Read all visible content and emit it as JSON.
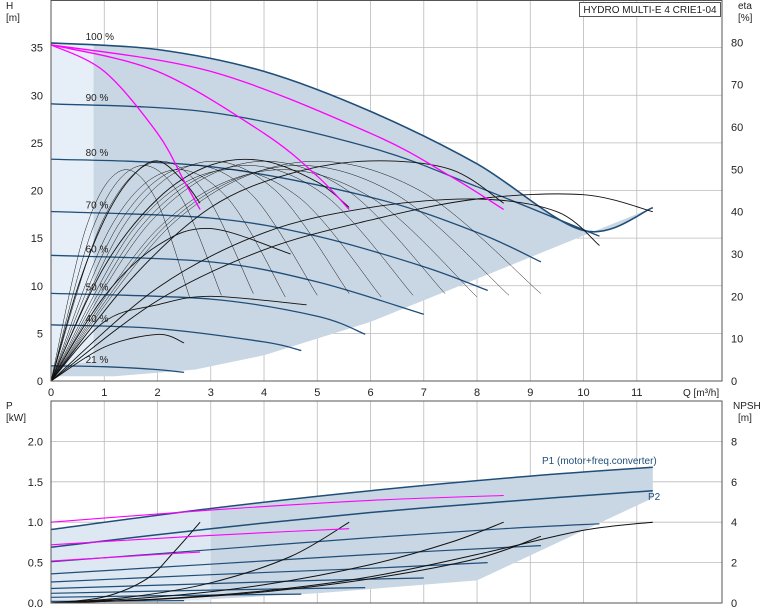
{
  "model_label": "HYDRO MULTI-E 4 CRIE1-04",
  "top_chart": {
    "left_axis_title": "H",
    "left_axis_unit": "[m]",
    "right_axis_title": "eta",
    "right_axis_unit": "[%]",
    "x_axis_unit": "Q [m³/h]",
    "speed_labels": [
      "100 %",
      "90 %",
      "80 %",
      "70 %",
      "60 %",
      "50 %",
      "40 %",
      "21 %"
    ]
  },
  "bottom_chart": {
    "left_axis_title": "P",
    "left_axis_unit": "[kW]",
    "right_axis_title": "NPSH",
    "right_axis_unit": "[m]",
    "curve_label_p1": "P1 (motor+freq.converter)",
    "curve_label_p2": "P2"
  },
  "colors": {
    "envelope_fill": "#c9d6e3",
    "envelope_edge": "#1f4e79",
    "qh_curve": "#1f4e79",
    "efficiency_curve": "#111111",
    "magenta_curve": "#ff00ff",
    "light_fill": "#e6eff8",
    "grid": "#bbbbbb"
  },
  "chart_data": [
    {
      "type": "line",
      "title": "",
      "xlabel": "Q [m³/h]",
      "ylabel": "H [m]",
      "y2label": "eta [%]",
      "xlim": [
        0,
        12.6
      ],
      "ylim": [
        0,
        40
      ],
      "y2lim": [
        0,
        90
      ],
      "xticks": [
        0,
        1,
        2,
        3,
        4,
        5,
        6,
        7,
        8,
        9,
        10,
        11
      ],
      "yticks": [
        0,
        5,
        10,
        15,
        20,
        25,
        30,
        35
      ],
      "y2ticks": [
        0,
        10,
        20,
        30,
        40,
        50,
        60,
        70,
        80
      ],
      "qh_series": [
        {
          "name": "100 %",
          "x": [
            0,
            2,
            4,
            6,
            8,
            10,
            11.3
          ],
          "y": [
            35.5,
            34.8,
            32.5,
            28.3,
            22.8,
            15.8,
            18.2
          ]
        },
        {
          "name": "90 %",
          "x": [
            0,
            3,
            6,
            8,
            10.3
          ],
          "y": [
            29.1,
            28.2,
            24.5,
            20.4,
            15.2
          ]
        },
        {
          "name": "80 %",
          "x": [
            0,
            3,
            6,
            8,
            9.2
          ],
          "y": [
            23.3,
            22.5,
            19.3,
            15.6,
            12.5
          ]
        },
        {
          "name": "70 %",
          "x": [
            0,
            3,
            5,
            7,
            8.2
          ],
          "y": [
            17.8,
            17.1,
            15.2,
            12.0,
            9.5
          ]
        },
        {
          "name": "60 %",
          "x": [
            0,
            3,
            5,
            7.0
          ],
          "y": [
            13.2,
            12.5,
            10.4,
            7.0
          ]
        },
        {
          "name": "50 %",
          "x": [
            0,
            3,
            5,
            5.9
          ],
          "y": [
            9.2,
            8.6,
            6.8,
            4.9
          ]
        },
        {
          "name": "40 %",
          "x": [
            0,
            2,
            4,
            4.7
          ],
          "y": [
            5.9,
            5.5,
            4.1,
            3.2
          ]
        },
        {
          "name": "21 %",
          "x": [
            0,
            1,
            2,
            2.5
          ],
          "y": [
            1.6,
            1.5,
            1.2,
            0.9
          ]
        }
      ],
      "efficiency_series": [
        {
          "name": "",
          "x": [
            0,
            0.5,
            1.0,
            1.5,
            2.0,
            2.5,
            2.8
          ],
          "y": [
            0,
            22,
            38,
            48,
            52,
            47,
            42
          ]
        },
        {
          "name": "",
          "x": [
            0,
            1,
            2,
            3,
            4,
            5,
            5.6
          ],
          "y": [
            0,
            27,
            43,
            51,
            52,
            47,
            41
          ]
        },
        {
          "name": "",
          "x": [
            0,
            1.5,
            3,
            4.5,
            6,
            7.5,
            8.5
          ],
          "y": [
            0,
            24,
            41,
            49,
            52,
            50,
            42
          ]
        },
        {
          "name": "",
          "x": [
            0,
            2,
            4,
            6,
            8,
            9.5,
            10.3
          ],
          "y": [
            0,
            22,
            35,
            41,
            43,
            40,
            32
          ]
        },
        {
          "name": "",
          "x": [
            0,
            2,
            4,
            6,
            8,
            10,
            11.3
          ],
          "y": [
            0,
            19,
            31,
            38,
            43,
            44,
            40
          ]
        },
        {
          "name": "",
          "x": [
            0,
            1,
            2,
            3,
            4.5
          ],
          "y": [
            0,
            20,
            32,
            36,
            30
          ]
        },
        {
          "name": "",
          "x": [
            0,
            1,
            2,
            3,
            4.8
          ],
          "y": [
            0,
            14,
            18,
            20,
            18
          ]
        },
        {
          "name": "",
          "x": [
            0,
            1,
            2,
            2.5
          ],
          "y": [
            0,
            8,
            11,
            9
          ]
        }
      ],
      "magenta_series": [
        {
          "name": "",
          "x": [
            0,
            1,
            2,
            2.5,
            2.8
          ],
          "y": [
            35.3,
            32.5,
            26.0,
            21.0,
            18.0
          ]
        },
        {
          "name": "",
          "x": [
            0,
            2,
            4,
            5.0,
            5.6
          ],
          "y": [
            35.3,
            32.5,
            26.0,
            21.5,
            18.0
          ]
        },
        {
          "name": "",
          "x": [
            0,
            3,
            6,
            7.5,
            8.5
          ],
          "y": [
            35.3,
            32.5,
            26.0,
            21.5,
            18.0
          ]
        }
      ]
    },
    {
      "type": "line",
      "title": "",
      "xlabel": "Q [m³/h]",
      "ylabel": "P [kW]",
      "y2label": "NPSH [m]",
      "xlim": [
        0,
        12.6
      ],
      "ylim": [
        0,
        2.5
      ],
      "y2lim": [
        0,
        10
      ],
      "yticks": [
        0.0,
        0.5,
        1.0,
        1.5,
        2.0
      ],
      "y2ticks": [
        0,
        2,
        4,
        6,
        8
      ],
      "power_series": [
        {
          "name": "P1 (motor+freq.converter)",
          "x": [
            0,
            3,
            6,
            9,
            11.3
          ],
          "y": [
            0.91,
            1.17,
            1.39,
            1.57,
            1.68
          ]
        },
        {
          "name": "P2",
          "x": [
            0,
            3,
            6,
            9,
            11.3
          ],
          "y": [
            0.69,
            0.92,
            1.12,
            1.28,
            1.39
          ]
        },
        {
          "name": "",
          "x": [
            0,
            3,
            6,
            8.5,
            10.3
          ],
          "y": [
            0.51,
            0.66,
            0.81,
            0.92,
            0.98
          ]
        },
        {
          "name": "",
          "x": [
            0,
            3,
            6,
            9.2
          ],
          "y": [
            0.36,
            0.48,
            0.6,
            0.71
          ]
        },
        {
          "name": "",
          "x": [
            0,
            3,
            6,
            8.2
          ],
          "y": [
            0.26,
            0.35,
            0.43,
            0.5
          ]
        },
        {
          "name": "",
          "x": [
            0,
            3,
            5,
            7.0
          ],
          "y": [
            0.18,
            0.24,
            0.28,
            0.31
          ]
        },
        {
          "name": "",
          "x": [
            0,
            3,
            5.9
          ],
          "y": [
            0.12,
            0.16,
            0.19
          ]
        },
        {
          "name": "",
          "x": [
            0,
            2,
            4.7
          ],
          "y": [
            0.07,
            0.09,
            0.11
          ]
        },
        {
          "name": "",
          "x": [
            0,
            1.5,
            2.5
          ],
          "y": [
            0.02,
            0.025,
            0.03
          ]
        }
      ],
      "npsh_series": [
        {
          "name": "",
          "x": [
            0,
            2,
            4,
            6,
            8,
            10,
            11.3
          ],
          "y": [
            0.0,
            0.2,
            0.6,
            1.3,
            2.4,
            3.6,
            4.0
          ]
        },
        {
          "name": "",
          "x": [
            0,
            2,
            4,
            6,
            8,
            9.2
          ],
          "y": [
            0.0,
            0.18,
            0.55,
            1.2,
            2.2,
            3.3
          ]
        },
        {
          "name": "",
          "x": [
            0,
            2,
            4,
            6,
            7.5,
            8.5
          ],
          "y": [
            0.0,
            0.3,
            0.9,
            1.9,
            3.0,
            4.0
          ]
        },
        {
          "name": "",
          "x": [
            0,
            1.5,
            3,
            4.5,
            5.6
          ],
          "y": [
            0.0,
            0.3,
            1.0,
            2.3,
            4.0
          ]
        },
        {
          "name": "",
          "x": [
            0,
            1,
            1.8,
            2.3,
            2.8
          ],
          "y": [
            0.0,
            0.3,
            1.2,
            2.5,
            4.0
          ]
        }
      ],
      "magenta_series": [
        {
          "name": "",
          "x": [
            0,
            3,
            6,
            8.5
          ],
          "y": [
            1.0,
            1.15,
            1.27,
            1.33
          ]
        },
        {
          "name": "",
          "x": [
            0,
            2,
            4,
            5.6
          ],
          "y": [
            0.72,
            0.8,
            0.87,
            0.92
          ]
        },
        {
          "name": "",
          "x": [
            0,
            1,
            2,
            2.8
          ],
          "y": [
            0.52,
            0.56,
            0.6,
            0.63
          ]
        }
      ]
    }
  ]
}
